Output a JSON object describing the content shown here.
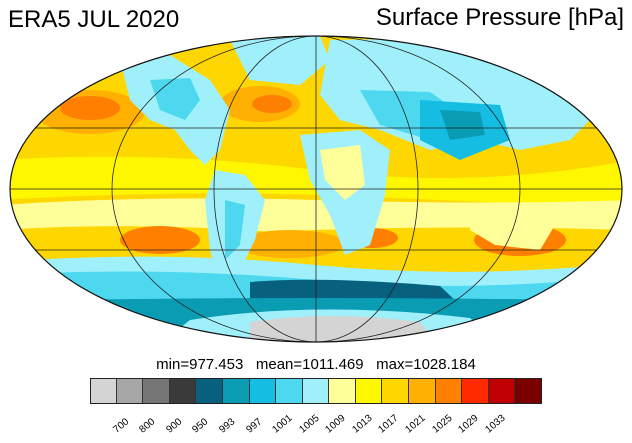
{
  "title_left": "ERA5 JUL 2020",
  "title_right": "Surface Pressure [hPa]",
  "stats": {
    "min_label": "min=",
    "min_value": "977.453",
    "mean_label": "mean=",
    "mean_value": "1011.469",
    "max_label": "max=",
    "max_value": "1028.184"
  },
  "colorbar": {
    "colors": [
      "#d4d4d4",
      "#a6a6a6",
      "#767676",
      "#3a3a3a",
      "#06607e",
      "#0a9cb3",
      "#16bde3",
      "#4dd8f0",
      "#9ff0fb",
      "#ffff99",
      "#fff700",
      "#ffd700",
      "#ffb000",
      "#ff8000",
      "#ff2a00",
      "#c00000",
      "#7a0000"
    ],
    "ticks": [
      "700",
      "800",
      "900",
      "950",
      "993",
      "997",
      "1001",
      "1005",
      "1009",
      "1013",
      "1017",
      "1021",
      "1025",
      "1029",
      "1033"
    ]
  },
  "map": {
    "projection": "Mollweide",
    "ocean_base": "#ffd700",
    "grid": true
  }
}
